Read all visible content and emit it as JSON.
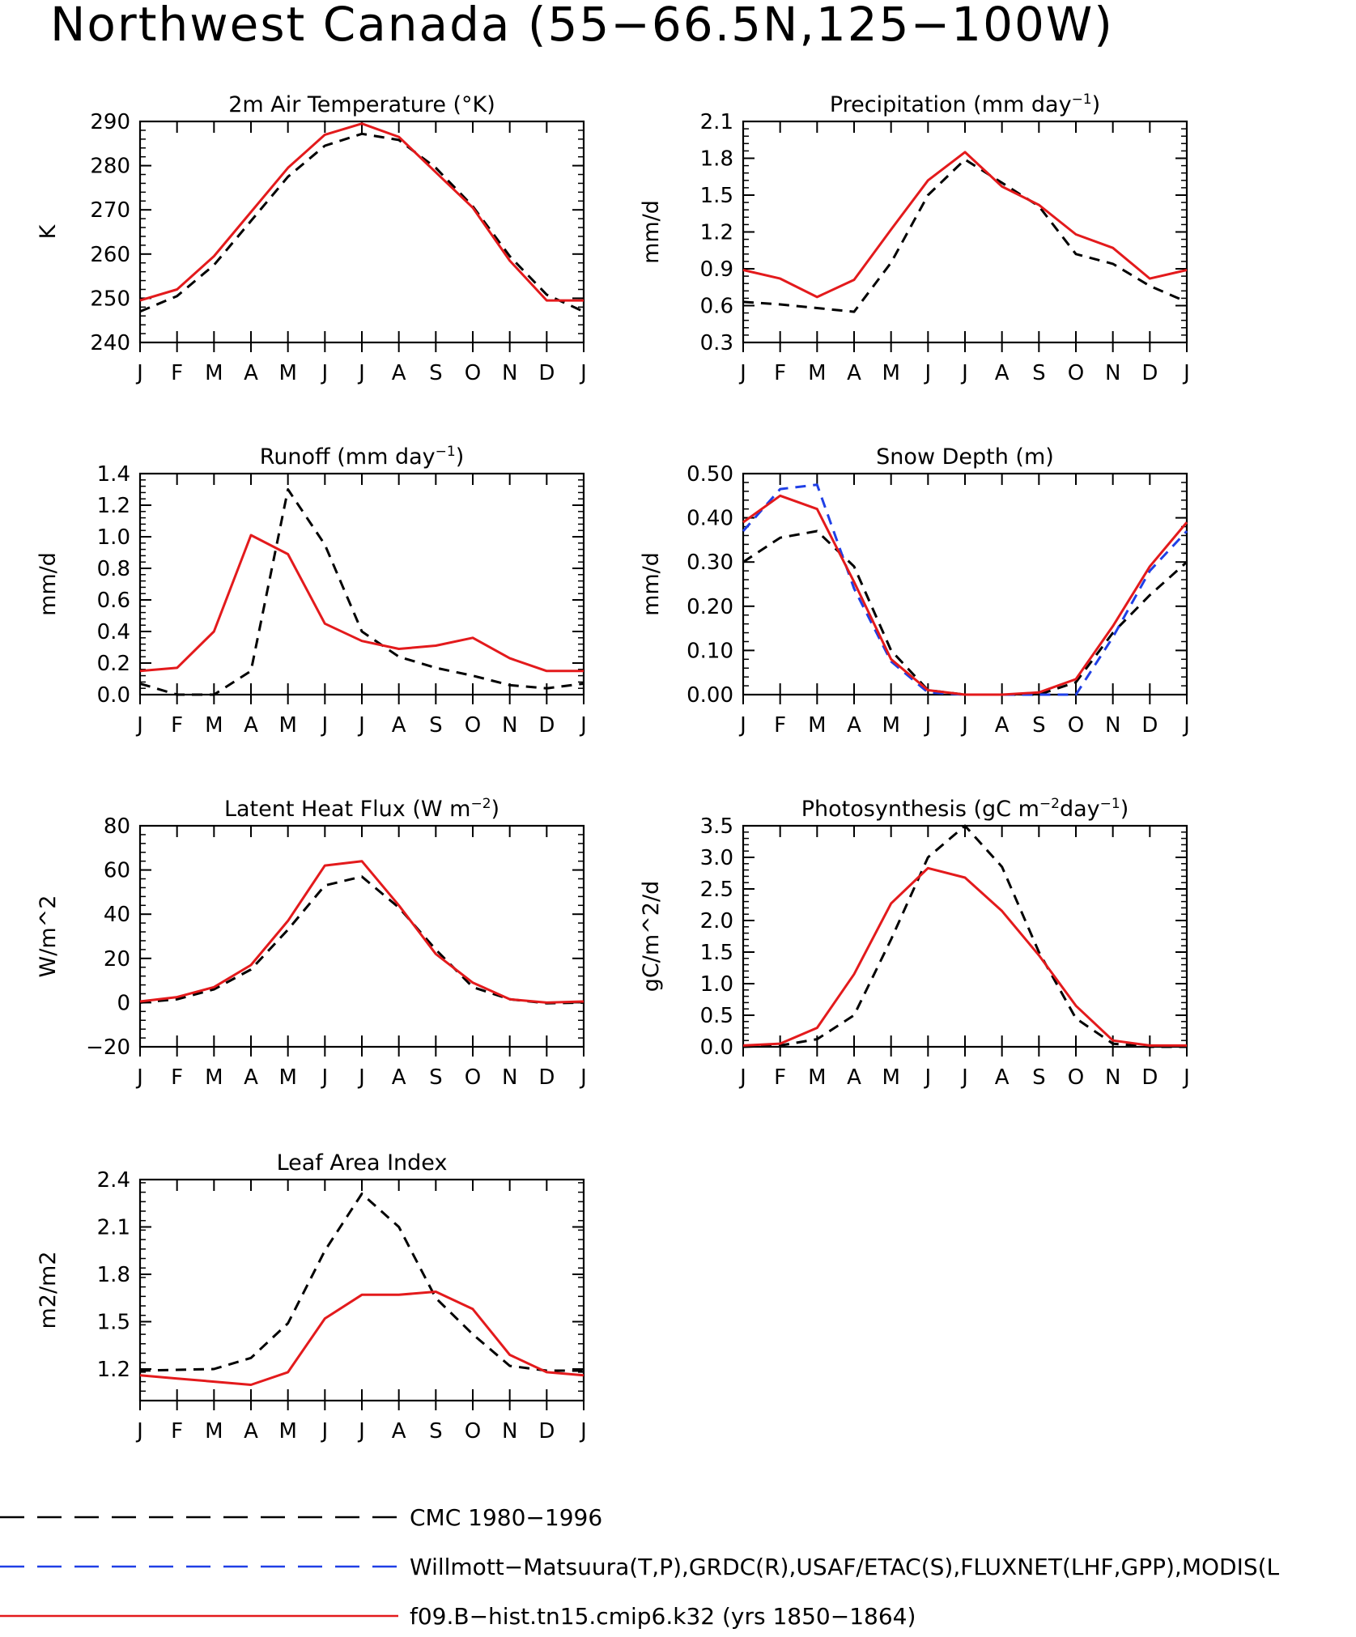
{
  "title": "Northwest Canada (55−66.5N,125−100W)",
  "months": [
    "J",
    "F",
    "M",
    "A",
    "M",
    "J",
    "J",
    "A",
    "S",
    "O",
    "N",
    "D",
    "J"
  ],
  "colors": {
    "cmc": "#000000",
    "obs": "#1f3fe6",
    "model": "#e31a1c"
  },
  "legend": [
    {
      "label": "CMC 1980−1996",
      "color": "#000000",
      "style": "dashed"
    },
    {
      "label": "Willmott−Matsuura(T,P),GRDC(R),USAF/ETAC(S),FLUXNET(LHF,GPP),MODIS(L",
      "color": "#1f3fe6",
      "style": "dashed"
    },
    {
      "label": "f09.B−hist.tn15.cmip6.k32 (yrs 1850−1864)",
      "color": "#e31a1c",
      "style": "solid"
    }
  ],
  "chart_data": [
    {
      "id": "temp",
      "type": "line",
      "title_parts": [
        {
          "t": "2m Air Temperature (°K)"
        }
      ],
      "ylabel": "K",
      "ylim": [
        240,
        290
      ],
      "yticks": [
        240,
        250,
        260,
        270,
        280,
        290
      ],
      "tick_labels": [
        "240",
        "250",
        "260",
        "270",
        "280",
        "290"
      ],
      "series": [
        {
          "key": "cmc",
          "style": "dashed",
          "values": [
            247,
            250.5,
            257.5,
            267.5,
            277.5,
            284.5,
            287.2,
            285.8,
            279.5,
            270.8,
            259.5,
            250.8,
            247
          ]
        },
        {
          "key": "model",
          "style": "solid",
          "values": [
            249.5,
            252,
            259.5,
            269.5,
            279.5,
            287,
            289.5,
            286.5,
            278.5,
            270.5,
            258.5,
            249.5,
            249.5
          ]
        }
      ]
    },
    {
      "id": "precip",
      "type": "line",
      "title_parts": [
        {
          "t": "Precipitation (mm day"
        },
        {
          "t": "−1",
          "sup": true
        },
        {
          "t": ")"
        }
      ],
      "ylabel": "mm/d",
      "ylim": [
        0.3,
        2.1
      ],
      "yticks": [
        0.3,
        0.6,
        0.9,
        1.2,
        1.5,
        1.8,
        2.1
      ],
      "tick_labels": [
        "0.3",
        "0.6",
        "0.9",
        "1.2",
        "1.5",
        "1.8",
        "2.1"
      ],
      "series": [
        {
          "key": "cmc",
          "style": "dashed",
          "values": [
            0.63,
            0.61,
            0.58,
            0.55,
            0.95,
            1.5,
            1.79,
            1.6,
            1.41,
            1.02,
            0.94,
            0.76,
            0.63
          ]
        },
        {
          "key": "model",
          "style": "solid",
          "values": [
            0.89,
            0.82,
            0.67,
            0.81,
            1.22,
            1.62,
            1.85,
            1.57,
            1.42,
            1.18,
            1.07,
            0.82,
            0.89
          ]
        }
      ]
    },
    {
      "id": "runoff",
      "type": "line",
      "title_parts": [
        {
          "t": "Runoff (mm day"
        },
        {
          "t": "−1",
          "sup": true
        },
        {
          "t": ")"
        }
      ],
      "ylabel": "mm/d",
      "ylim": [
        0.0,
        1.4
      ],
      "yticks": [
        0.0,
        0.2,
        0.4,
        0.6,
        0.8,
        1.0,
        1.2,
        1.4
      ],
      "tick_labels": [
        "0.0",
        "0.2",
        "0.4",
        "0.6",
        "0.8",
        "1.0",
        "1.2",
        "1.4"
      ],
      "series": [
        {
          "key": "cmc",
          "style": "dashed",
          "values": [
            0.07,
            0.0,
            0.0,
            0.15,
            1.3,
            0.95,
            0.4,
            0.24,
            0.17,
            0.12,
            0.06,
            0.04,
            0.07
          ]
        },
        {
          "key": "model",
          "style": "solid",
          "values": [
            0.15,
            0.17,
            0.4,
            1.01,
            0.89,
            0.45,
            0.34,
            0.29,
            0.31,
            0.36,
            0.23,
            0.15,
            0.15
          ]
        }
      ]
    },
    {
      "id": "snow",
      "type": "line",
      "title_parts": [
        {
          "t": "Snow Depth (m)"
        }
      ],
      "ylabel": "mm/d",
      "ylim": [
        0.0,
        0.5
      ],
      "yticks": [
        0.0,
        0.1,
        0.2,
        0.3,
        0.4,
        0.5
      ],
      "tick_labels": [
        "0.00",
        "0.10",
        "0.20",
        "0.30",
        "0.40",
        "0.50"
      ],
      "series": [
        {
          "key": "cmc",
          "style": "dashed",
          "values": [
            0.3,
            0.355,
            0.37,
            0.29,
            0.1,
            0.01,
            0.0,
            0.0,
            0.0,
            0.028,
            0.14,
            0.225,
            0.3
          ]
        },
        {
          "key": "obs",
          "style": "dashed",
          "values": [
            0.37,
            0.465,
            0.475,
            0.24,
            0.075,
            0.005,
            0.0,
            0.0,
            0.0,
            0.0,
            0.13,
            0.28,
            0.37
          ]
        },
        {
          "key": "model",
          "style": "solid",
          "values": [
            0.39,
            0.45,
            0.42,
            0.255,
            0.08,
            0.01,
            0.0,
            0.0,
            0.005,
            0.035,
            0.155,
            0.29,
            0.39
          ]
        }
      ]
    },
    {
      "id": "lhf",
      "type": "line",
      "title_parts": [
        {
          "t": "Latent Heat Flux (W m"
        },
        {
          "t": "−2",
          "sup": true
        },
        {
          "t": ")"
        }
      ],
      "ylabel": "W/m^2",
      "ylim": [
        -20,
        80
      ],
      "yticks": [
        -20,
        0,
        20,
        40,
        60,
        80
      ],
      "tick_labels": [
        "−20",
        "0",
        "20",
        "40",
        "60",
        "80"
      ],
      "series": [
        {
          "key": "cmc",
          "style": "dashed",
          "values": [
            0,
            1.5,
            6,
            15,
            33,
            53,
            57,
            43,
            24,
            7,
            1.5,
            -0.3,
            0
          ]
        },
        {
          "key": "model",
          "style": "solid",
          "values": [
            0.5,
            2.5,
            7,
            17,
            37,
            62,
            64,
            44,
            22,
            9,
            1.5,
            0,
            0.5
          ]
        }
      ]
    },
    {
      "id": "gpp",
      "type": "line",
      "title_parts": [
        {
          "t": "Photosynthesis (gC m"
        },
        {
          "t": "−2",
          "sup": true
        },
        {
          "t": "day"
        },
        {
          "t": "−1",
          "sup": true
        },
        {
          "t": ")"
        }
      ],
      "ylabel": "gC/m^2/d",
      "ylim": [
        0.0,
        3.5
      ],
      "yticks": [
        0.0,
        0.5,
        1.0,
        1.5,
        2.0,
        2.5,
        3.0,
        3.5
      ],
      "tick_labels": [
        "0.0",
        "0.5",
        "1.0",
        "1.5",
        "2.0",
        "2.5",
        "3.0",
        "3.5"
      ],
      "series": [
        {
          "key": "cmc",
          "style": "dashed",
          "values": [
            0.0,
            0.02,
            0.12,
            0.5,
            1.7,
            3.0,
            3.5,
            2.85,
            1.5,
            0.45,
            0.05,
            0.0,
            0.0
          ]
        },
        {
          "key": "model",
          "style": "solid",
          "values": [
            0.02,
            0.05,
            0.3,
            1.15,
            2.27,
            2.83,
            2.68,
            2.15,
            1.45,
            0.65,
            0.1,
            0.02,
            0.02
          ]
        }
      ]
    },
    {
      "id": "lai",
      "type": "line",
      "title_parts": [
        {
          "t": "Leaf Area Index"
        }
      ],
      "ylabel": "m2/m2",
      "ylim": [
        1.0,
        2.4
      ],
      "yticks": [
        1.2,
        1.5,
        1.8,
        2.1,
        2.4
      ],
      "tick_labels": [
        "1.2",
        "1.5",
        "1.8",
        "2.1",
        "2.4"
      ],
      "series": [
        {
          "key": "cmc",
          "style": "dashed",
          "values": [
            1.19,
            1.195,
            1.2,
            1.27,
            1.49,
            1.95,
            2.31,
            2.1,
            1.65,
            1.42,
            1.22,
            1.19,
            1.19
          ]
        },
        {
          "key": "model",
          "style": "solid",
          "values": [
            1.16,
            1.14,
            1.12,
            1.1,
            1.18,
            1.52,
            1.67,
            1.67,
            1.69,
            1.58,
            1.29,
            1.18,
            1.16
          ]
        }
      ]
    }
  ]
}
